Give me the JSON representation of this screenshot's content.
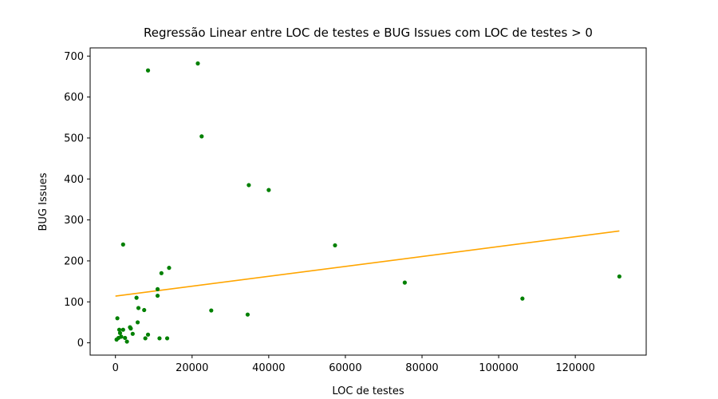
{
  "chart_data": {
    "type": "scatter",
    "title": "Regressão Linear entre LOC de testes e BUG Issues com LOC de testes > 0",
    "xlabel": "LOC de testes",
    "ylabel": "BUG Issues",
    "xlim": [
      -6600,
      138500
    ],
    "ylim": [
      -30,
      720
    ],
    "xticks": [
      0,
      20000,
      40000,
      60000,
      80000,
      100000,
      120000
    ],
    "yticks": [
      0,
      100,
      200,
      300,
      400,
      500,
      600,
      700
    ],
    "grid": false,
    "legend": "none",
    "point_color": "#008000",
    "line_color": "#ffa500",
    "points": [
      {
        "x": 8500,
        "y": 665
      },
      {
        "x": 21500,
        "y": 682
      },
      {
        "x": 22500,
        "y": 504
      },
      {
        "x": 34800,
        "y": 385
      },
      {
        "x": 40000,
        "y": 373
      },
      {
        "x": 2000,
        "y": 240
      },
      {
        "x": 57300,
        "y": 238
      },
      {
        "x": 14000,
        "y": 183
      },
      {
        "x": 12000,
        "y": 170
      },
      {
        "x": 131500,
        "y": 162
      },
      {
        "x": 75500,
        "y": 147
      },
      {
        "x": 11000,
        "y": 131
      },
      {
        "x": 11000,
        "y": 115
      },
      {
        "x": 5500,
        "y": 110
      },
      {
        "x": 106200,
        "y": 108
      },
      {
        "x": 6000,
        "y": 85
      },
      {
        "x": 7500,
        "y": 80
      },
      {
        "x": 25000,
        "y": 79
      },
      {
        "x": 34500,
        "y": 69
      },
      {
        "x": 500,
        "y": 60
      },
      {
        "x": 5800,
        "y": 50
      },
      {
        "x": 3800,
        "y": 38
      },
      {
        "x": 4000,
        "y": 35
      },
      {
        "x": 1000,
        "y": 32
      },
      {
        "x": 2000,
        "y": 32
      },
      {
        "x": 1200,
        "y": 24
      },
      {
        "x": 4500,
        "y": 22
      },
      {
        "x": 8500,
        "y": 20
      },
      {
        "x": 1500,
        "y": 15
      },
      {
        "x": 800,
        "y": 12
      },
      {
        "x": 2500,
        "y": 12
      },
      {
        "x": 11500,
        "y": 11
      },
      {
        "x": 7800,
        "y": 11
      },
      {
        "x": 13500,
        "y": 11
      },
      {
        "x": 300,
        "y": 8
      },
      {
        "x": 3000,
        "y": 3
      }
    ],
    "regression_line": [
      {
        "x": 0,
        "y": 114
      },
      {
        "x": 131500,
        "y": 273
      }
    ]
  }
}
